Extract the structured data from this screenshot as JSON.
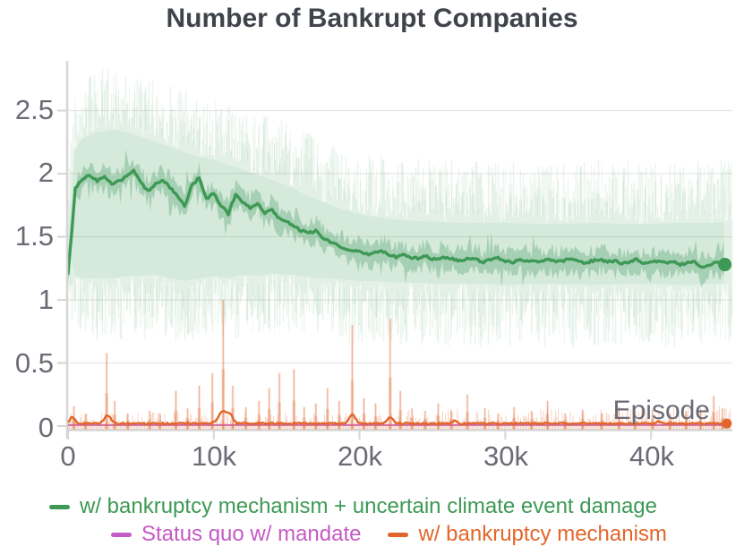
{
  "title": "Number of Bankrupt Companies",
  "colors": {
    "green": "#3d9955",
    "orange": "#e2662b",
    "magenta": "#c55bc5",
    "axis_text": "#6b6b76",
    "title_text": "#3f444b",
    "grid": "#e8e8e8",
    "spine": "#d6d6d6"
  },
  "legend": {
    "items": [
      {
        "label": "w/ bankruptcy mechanism + uncertain climate event damage",
        "color": "#3d9955"
      },
      {
        "label": "Status quo w/ mandate",
        "color": "#c55bc5"
      },
      {
        "label": "w/ bankruptcy mechanism",
        "color": "#e2662b"
      }
    ]
  },
  "chart_data": {
    "type": "line",
    "title": "Number of Bankrupt Companies",
    "xlabel": "Episode",
    "ylabel": "",
    "xlim_episodes": [
      0,
      45000
    ],
    "ylim": [
      0,
      2.89
    ],
    "grid": "horizontal-only",
    "legend_position": "bottom",
    "x_ticks": [
      {
        "value": 0,
        "label": "0"
      },
      {
        "value": 10000,
        "label": "10k"
      },
      {
        "value": 20000,
        "label": "20k"
      },
      {
        "value": 30000,
        "label": "30k"
      },
      {
        "value": 40000,
        "label": "40k"
      }
    ],
    "y_ticks": [
      {
        "value": 0,
        "label": "0"
      },
      {
        "value": 0.5,
        "label": "0.5"
      },
      {
        "value": 1,
        "label": "1"
      },
      {
        "value": 1.5,
        "label": "1.5"
      },
      {
        "value": 2,
        "label": "2"
      },
      {
        "value": 2.5,
        "label": "2.5"
      }
    ],
    "series": [
      {
        "name": "w/ bankruptcy mechanism + uncertain climate event damage",
        "color": "#3d9955",
        "x_start_episodes": 0,
        "x_step_episodes": 500,
        "mean": [
          1.2,
          1.88,
          1.96,
          1.99,
          1.94,
          1.98,
          1.92,
          1.94,
          1.98,
          2.02,
          1.93,
          1.86,
          1.92,
          1.95,
          1.89,
          1.82,
          1.74,
          1.91,
          1.97,
          1.8,
          1.84,
          1.75,
          1.68,
          1.84,
          1.77,
          1.73,
          1.77,
          1.69,
          1.71,
          1.64,
          1.62,
          1.58,
          1.55,
          1.53,
          1.55,
          1.49,
          1.46,
          1.43,
          1.41,
          1.39,
          1.38,
          1.36,
          1.37,
          1.39,
          1.36,
          1.34,
          1.36,
          1.33,
          1.33,
          1.35,
          1.32,
          1.33,
          1.34,
          1.32,
          1.31,
          1.33,
          1.32,
          1.3,
          1.32,
          1.33,
          1.31,
          1.3,
          1.32,
          1.31,
          1.3,
          1.31,
          1.32,
          1.3,
          1.31,
          1.33,
          1.3,
          1.29,
          1.31,
          1.32,
          1.3,
          1.31,
          1.29,
          1.3,
          1.32,
          1.29,
          1.3,
          1.31,
          1.29,
          1.3,
          1.28,
          1.29,
          1.3,
          1.26,
          1.27,
          1.3,
          1.28
        ],
        "band_inner_halfwidth": 0.11,
        "band_outer": [
          [
            0,
            1.25,
            1.7
          ],
          [
            0.4,
            1.02,
            2.35
          ],
          [
            1,
            1.0,
            2.45
          ],
          [
            2,
            1.0,
            2.5
          ],
          [
            3,
            1.0,
            2.52
          ],
          [
            4,
            1.02,
            2.5
          ],
          [
            5,
            1.02,
            2.46
          ],
          [
            6,
            1.03,
            2.42
          ],
          [
            7,
            1.0,
            2.38
          ],
          [
            8,
            0.98,
            2.34
          ],
          [
            9,
            1.0,
            2.3
          ],
          [
            10,
            1.02,
            2.28
          ],
          [
            11,
            1.0,
            2.24
          ],
          [
            12,
            1.03,
            2.2
          ],
          [
            13,
            1.02,
            2.16
          ],
          [
            14,
            1.04,
            2.12
          ],
          [
            15,
            1.03,
            2.08
          ],
          [
            16,
            1.02,
            2.02
          ],
          [
            17,
            1.0,
            1.97
          ],
          [
            18,
            1.0,
            1.92
          ],
          [
            19,
            0.99,
            1.88
          ],
          [
            20,
            0.98,
            1.85
          ],
          [
            21,
            0.98,
            1.83
          ],
          [
            22,
            0.97,
            1.81
          ],
          [
            23,
            0.97,
            1.8
          ],
          [
            25,
            0.96,
            1.79
          ],
          [
            27,
            0.96,
            1.78
          ],
          [
            30,
            0.95,
            1.78
          ],
          [
            33,
            0.96,
            1.77
          ],
          [
            36,
            0.95,
            1.78
          ],
          [
            39,
            0.96,
            1.77
          ],
          [
            42,
            0.95,
            1.78
          ],
          [
            45,
            0.96,
            1.78
          ]
        ],
        "end_marker": {
          "x_episodes": 45000,
          "value": 1.28
        }
      },
      {
        "name": "Status quo w/ mandate",
        "color": "#c55bc5",
        "constant_value": 0.008
      },
      {
        "name": "w/ bankruptcy mechanism",
        "color": "#e2662b",
        "baseline_value": 0.015,
        "bumps": [
          {
            "k": 0.3,
            "h": 0.05,
            "w": 0.25
          },
          {
            "k": 2.7,
            "h": 0.065,
            "w": 0.3
          },
          {
            "k": 10.65,
            "h": 0.095,
            "w": 0.45
          },
          {
            "k": 11.15,
            "h": 0.05,
            "w": 0.25
          },
          {
            "k": 19.5,
            "h": 0.07,
            "w": 0.3
          },
          {
            "k": 22.1,
            "h": 0.05,
            "w": 0.28
          },
          {
            "k": 26.5,
            "h": 0.022,
            "w": 0.2
          },
          {
            "k": 40.5,
            "h": 0.02,
            "w": 0.2
          }
        ],
        "spikes": [
          [
            0.4,
            0.16
          ],
          [
            1.2,
            0.1
          ],
          [
            2.65,
            0.58
          ],
          [
            3.2,
            0.2
          ],
          [
            4.1,
            0.1
          ],
          [
            5.6,
            0.12
          ],
          [
            6.3,
            0.1
          ],
          [
            7.4,
            0.28
          ],
          [
            8.2,
            0.14
          ],
          [
            9.0,
            0.32
          ],
          [
            9.9,
            0.42
          ],
          [
            10.65,
            1.0
          ],
          [
            11.3,
            0.32
          ],
          [
            12.2,
            0.15
          ],
          [
            13.1,
            0.2
          ],
          [
            13.8,
            0.3
          ],
          [
            14.5,
            0.42
          ],
          [
            15.5,
            0.45
          ],
          [
            16.2,
            0.15
          ],
          [
            17.0,
            0.18
          ],
          [
            17.8,
            0.3
          ],
          [
            18.6,
            0.2
          ],
          [
            19.5,
            0.8
          ],
          [
            20.3,
            0.22
          ],
          [
            21.1,
            0.18
          ],
          [
            22.1,
            0.85
          ],
          [
            22.8,
            0.28
          ],
          [
            23.6,
            0.14
          ],
          [
            24.5,
            0.12
          ],
          [
            25.4,
            0.18
          ],
          [
            26.3,
            0.12
          ],
          [
            27.4,
            0.25
          ],
          [
            28.6,
            0.14
          ],
          [
            29.5,
            0.1
          ],
          [
            30.6,
            0.15
          ],
          [
            31.8,
            0.12
          ],
          [
            32.9,
            0.2
          ],
          [
            34.1,
            0.1
          ],
          [
            35.3,
            0.13
          ],
          [
            36.6,
            0.1
          ],
          [
            37.8,
            0.15
          ],
          [
            38.9,
            0.12
          ],
          [
            40.1,
            0.13
          ],
          [
            41.3,
            0.1
          ],
          [
            42.4,
            0.12
          ],
          [
            43.4,
            0.13
          ],
          [
            44.3,
            0.24
          ],
          [
            44.9,
            0.14
          ]
        ],
        "end_marker": {
          "x_episodes": 45200,
          "value": 0.02
        }
      }
    ]
  }
}
